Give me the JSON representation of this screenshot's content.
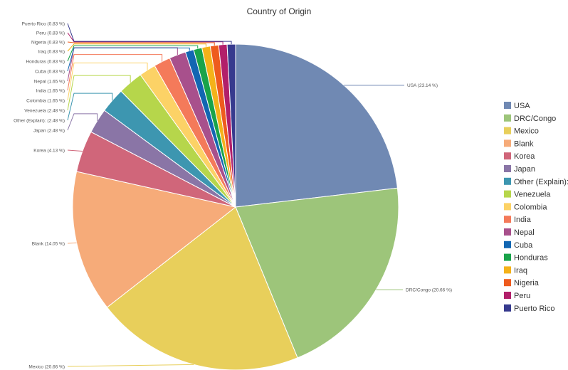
{
  "chart_data": {
    "type": "pie",
    "title": "Country of Origin",
    "legend_position": "right",
    "slices": [
      {
        "name": "USA",
        "value": 23.14,
        "label": "USA (23.14 %)",
        "color": "#7089b3"
      },
      {
        "name": "DRC/Congo",
        "value": 20.66,
        "label": "DRC/Congo (20.66 %)",
        "color": "#9dc57a"
      },
      {
        "name": "Mexico",
        "value": 20.66,
        "label": "Mexico (20.66 %)",
        "color": "#e8cf5b"
      },
      {
        "name": "Blank",
        "value": 14.05,
        "label": "Blank (14.05 %)",
        "color": "#f6ab79"
      },
      {
        "name": "Korea",
        "value": 4.13,
        "label": "Korea (4.13 %)",
        "color": "#d0667a"
      },
      {
        "name": "Japan",
        "value": 2.48,
        "label": "Japan (2.48 %)",
        "color": "#8a75a6"
      },
      {
        "name": "Other (Explain):",
        "value": 2.48,
        "label": "Other (Explain): (2.48 %)",
        "color": "#3d96b0"
      },
      {
        "name": "Venezuela",
        "value": 2.48,
        "label": "Venezuela (2.48 %)",
        "color": "#b6d64b"
      },
      {
        "name": "Colombia",
        "value": 1.65,
        "label": "Colombia (1.65 %)",
        "color": "#fcd266"
      },
      {
        "name": "India",
        "value": 1.65,
        "label": "India (1.65 %)",
        "color": "#f47a5a"
      },
      {
        "name": "Nepal",
        "value": 1.65,
        "label": "Nepal (1.65 %)",
        "color": "#a8508c"
      },
      {
        "name": "Cuba",
        "value": 0.83,
        "label": "Cuba (0.83 %)",
        "color": "#1266b2"
      },
      {
        "name": "Honduras",
        "value": 0.83,
        "label": "Honduras (0.83 %)",
        "color": "#19a34a"
      },
      {
        "name": "Iraq",
        "value": 0.83,
        "label": "Iraq (0.83 %)",
        "color": "#f4b21a"
      },
      {
        "name": "Nigeria",
        "value": 0.83,
        "label": "Nigeria (0.83 %)",
        "color": "#ee5b1e"
      },
      {
        "name": "Peru",
        "value": 0.83,
        "label": "Peru (0.83 %)",
        "color": "#b21f6a"
      },
      {
        "name": "Puerto Rico",
        "value": 0.83,
        "label": "Puerto Rico (0.83 %)",
        "color": "#373a8e"
      }
    ]
  }
}
